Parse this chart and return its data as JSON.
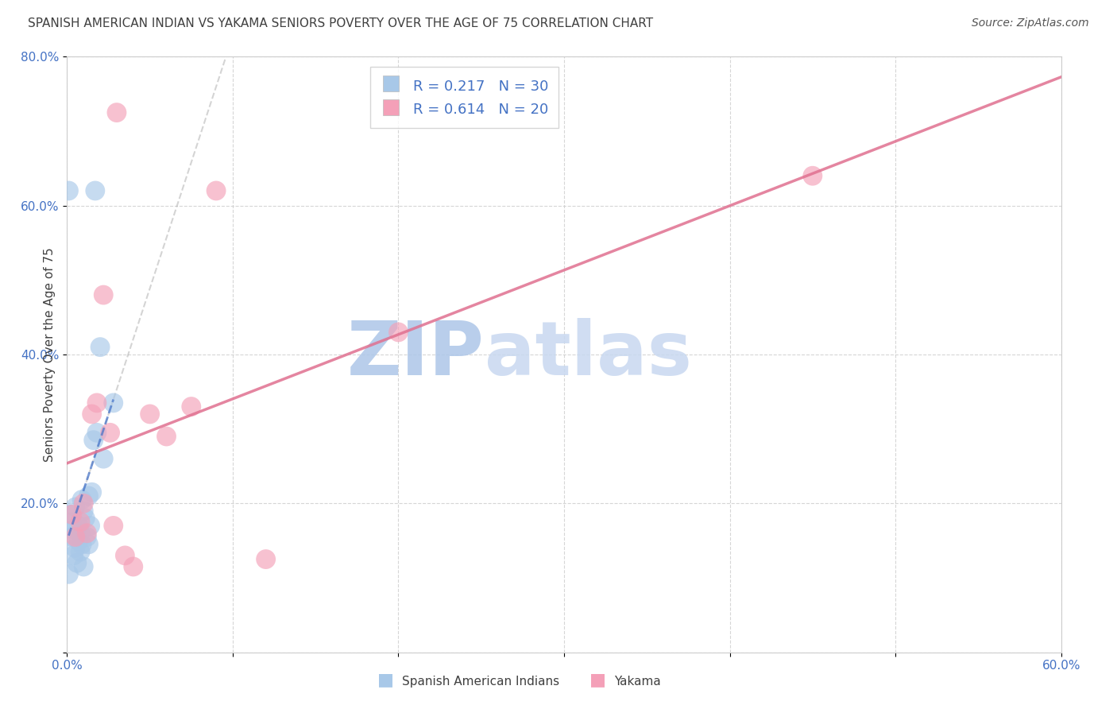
{
  "title": "SPANISH AMERICAN INDIAN VS YAKAMA SENIORS POVERTY OVER THE AGE OF 75 CORRELATION CHART",
  "source": "Source: ZipAtlas.com",
  "ylabel": "Seniors Poverty Over the Age of 75",
  "xlim": [
    0.0,
    0.6
  ],
  "ylim": [
    0.0,
    0.8
  ],
  "xticks": [
    0.0,
    0.1,
    0.2,
    0.3,
    0.4,
    0.5,
    0.6
  ],
  "yticks": [
    0.0,
    0.2,
    0.4,
    0.6,
    0.8
  ],
  "r_blue": "0.217",
  "n_blue": "30",
  "r_pink": "0.614",
  "n_pink": "20",
  "blue_color": "#a8c8e8",
  "pink_color": "#f4a0b8",
  "blue_line_color": "#4070c8",
  "pink_line_color": "#e07090",
  "axis_color": "#4472c4",
  "title_color": "#404040",
  "grid_color": "#cccccc",
  "blue_x": [
    0.001,
    0.002,
    0.003,
    0.003,
    0.004,
    0.004,
    0.005,
    0.005,
    0.006,
    0.007,
    0.007,
    0.008,
    0.008,
    0.009,
    0.009,
    0.01,
    0.01,
    0.011,
    0.012,
    0.013,
    0.013,
    0.014,
    0.015,
    0.016,
    0.017,
    0.018,
    0.02,
    0.022,
    0.028,
    0.001
  ],
  "blue_y": [
    0.105,
    0.185,
    0.155,
    0.175,
    0.13,
    0.165,
    0.14,
    0.195,
    0.12,
    0.15,
    0.17,
    0.135,
    0.16,
    0.145,
    0.205,
    0.115,
    0.19,
    0.18,
    0.155,
    0.145,
    0.21,
    0.17,
    0.215,
    0.285,
    0.62,
    0.295,
    0.41,
    0.26,
    0.335,
    0.62
  ],
  "pink_x": [
    0.003,
    0.005,
    0.008,
    0.01,
    0.012,
    0.015,
    0.018,
    0.022,
    0.026,
    0.028,
    0.03,
    0.035,
    0.04,
    0.05,
    0.06,
    0.075,
    0.09,
    0.12,
    0.2,
    0.45
  ],
  "pink_y": [
    0.185,
    0.155,
    0.175,
    0.2,
    0.16,
    0.32,
    0.335,
    0.48,
    0.295,
    0.17,
    0.725,
    0.13,
    0.115,
    0.32,
    0.29,
    0.33,
    0.62,
    0.125,
    0.43,
    0.64
  ],
  "bottom_label1": "Spanish American Indians",
  "bottom_label2": "Yakama"
}
